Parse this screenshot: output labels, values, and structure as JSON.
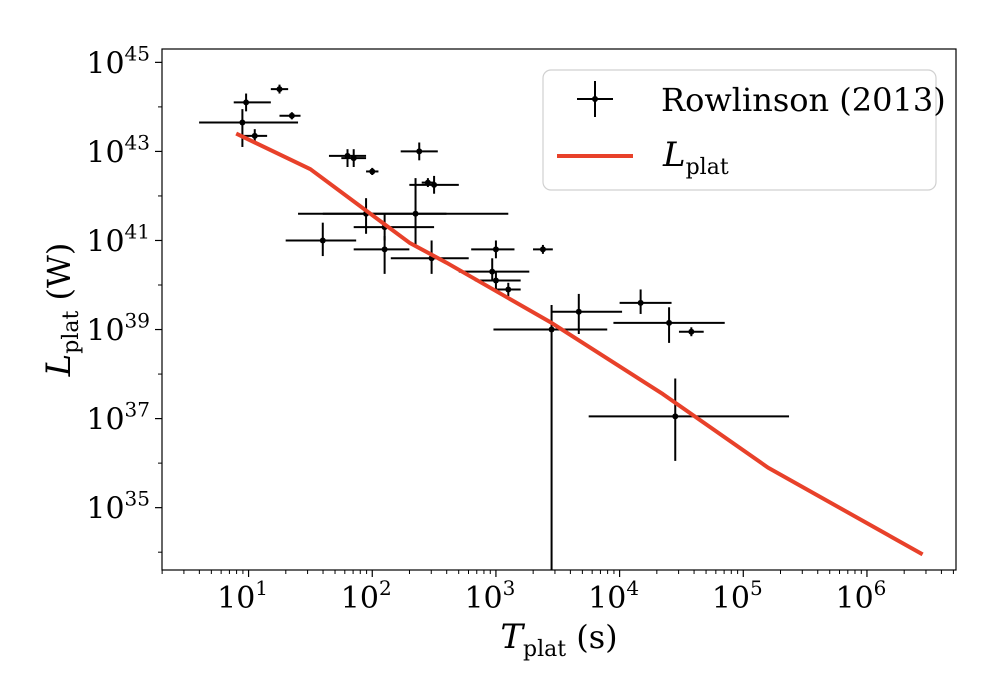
{
  "chart_data": {
    "type": "scatter",
    "title": "",
    "xlabel": {
      "symbol": "T",
      "subscript": "plat",
      "unit": " (s)"
    },
    "ylabel": {
      "symbol": "L",
      "subscript": "plat",
      "unit": " (W)"
    },
    "xscale": "log",
    "yscale": "log",
    "xlim_log10": [
      0.3,
      6.72
    ],
    "ylim_log10": [
      33.6,
      45.3
    ],
    "x_ticks": [
      {
        "base": "10",
        "exp": "1",
        "log": 1
      },
      {
        "base": "10",
        "exp": "2",
        "log": 2
      },
      {
        "base": "10",
        "exp": "3",
        "log": 3
      },
      {
        "base": "10",
        "exp": "4",
        "log": 4
      },
      {
        "base": "10",
        "exp": "5",
        "log": 5
      },
      {
        "base": "10",
        "exp": "6",
        "log": 6
      }
    ],
    "y_ticks": [
      {
        "base": "10",
        "exp": "35",
        "log": 35
      },
      {
        "base": "10",
        "exp": "37",
        "log": 37
      },
      {
        "base": "10",
        "exp": "39",
        "log": 39
      },
      {
        "base": "10",
        "exp": "41",
        "log": 41
      },
      {
        "base": "10",
        "exp": "43",
        "log": 43
      },
      {
        "base": "10",
        "exp": "45",
        "log": 45
      }
    ],
    "legend_position": "top-right",
    "series": [
      {
        "name": "Rowlinson (2013)",
        "kind": "errorbar",
        "color": "#000000",
        "points_log10": [
          {
            "x": 0.95,
            "y": 43.65,
            "xerr": [
              0.35,
              0.45
            ],
            "yerr": [
              0.55,
              0.3
            ]
          },
          {
            "x": 0.98,
            "y": 44.1,
            "xerr": [
              0.1,
              0.2
            ],
            "yerr": [
              0.2,
              0.2
            ]
          },
          {
            "x": 1.05,
            "y": 43.35,
            "xerr": [
              0.1,
              0.1
            ],
            "yerr": [
              0.15,
              0.15
            ]
          },
          {
            "x": 1.25,
            "y": 44.4,
            "xerr": [
              0.07,
              0.07
            ],
            "yerr": [
              0.1,
              0.1
            ]
          },
          {
            "x": 1.35,
            "y": 43.8,
            "xerr": [
              0.1,
              0.07
            ],
            "yerr": [
              0.08,
              0.08
            ]
          },
          {
            "x": 1.6,
            "y": 41.0,
            "xerr": [
              0.3,
              0.27
            ],
            "yerr": [
              0.35,
              0.4
            ]
          },
          {
            "x": 1.8,
            "y": 42.9,
            "xerr": [
              0.15,
              0.15
            ],
            "yerr": [
              0.25,
              0.15
            ]
          },
          {
            "x": 1.85,
            "y": 42.85,
            "xerr": [
              0.1,
              0.1
            ],
            "yerr": [
              0.2,
              0.2
            ]
          },
          {
            "x": 1.95,
            "y": 41.6,
            "xerr": [
              0.35,
              0.65
            ],
            "yerr": [
              0.45,
              0.35
            ]
          },
          {
            "x": 2.0,
            "y": 42.55,
            "xerr": [
              0.05,
              0.05
            ],
            "yerr": [
              0.08,
              0.08
            ]
          },
          {
            "x": 2.1,
            "y": 40.8,
            "xerr": [
              0.25,
              0.2
            ],
            "yerr": [
              0.55,
              0.3
            ]
          },
          {
            "x": 2.1,
            "y": 41.3,
            "xerr": [
              0.25,
              0.4
            ],
            "yerr": [
              0.3,
              0.3
            ]
          },
          {
            "x": 2.35,
            "y": 41.6,
            "xerr": [
              0.95,
              0.75
            ],
            "yerr": [
              0.75,
              0.8
            ]
          },
          {
            "x": 2.38,
            "y": 43.0,
            "xerr": [
              0.15,
              0.15
            ],
            "yerr": [
              0.2,
              0.2
            ]
          },
          {
            "x": 2.45,
            "y": 42.3,
            "xerr": [
              0.05,
              0.05
            ],
            "yerr": [
              0.1,
              0.1
            ]
          },
          {
            "x": 2.5,
            "y": 42.25,
            "xerr": [
              0.2,
              0.2
            ],
            "yerr": [
              0.2,
              0.2
            ]
          },
          {
            "x": 2.48,
            "y": 40.6,
            "xerr": [
              0.33,
              0.3
            ],
            "yerr": [
              0.35,
              0.4
            ]
          },
          {
            "x": 2.97,
            "y": 40.3,
            "xerr": [
              0.27,
              0.3
            ],
            "yerr": [
              0.2,
              0.3
            ]
          },
          {
            "x": 3.0,
            "y": 40.8,
            "xerr": [
              0.2,
              0.15
            ],
            "yerr": [
              0.2,
              0.2
            ]
          },
          {
            "x": 3.0,
            "y": 40.1,
            "xerr": [
              0.17,
              0.2
            ],
            "yerr": [
              0.2,
              0.2
            ]
          },
          {
            "x": 3.1,
            "y": 39.9,
            "xerr": [
              0.1,
              0.1
            ],
            "yerr": [
              0.15,
              0.15
            ]
          },
          {
            "x": 3.38,
            "y": 40.8,
            "xerr": [
              0.08,
              0.08
            ],
            "yerr": [
              0.1,
              0.1
            ]
          },
          {
            "x": 3.45,
            "y": 39.0,
            "xerr": [
              0.47,
              0.45
            ],
            "yerr": [
              5.4,
              0.55
            ]
          },
          {
            "x": 3.67,
            "y": 39.4,
            "xerr": [
              0.22,
              0.35
            ],
            "yerr": [
              0.5,
              0.4
            ]
          },
          {
            "x": 4.17,
            "y": 39.6,
            "xerr": [
              0.17,
              0.25
            ],
            "yerr": [
              0.25,
              0.3
            ]
          },
          {
            "x": 4.4,
            "y": 39.15,
            "xerr": [
              0.45,
              0.45
            ],
            "yerr": [
              0.45,
              0.35
            ]
          },
          {
            "x": 4.45,
            "y": 37.05,
            "xerr": [
              0.7,
              0.92
            ],
            "yerr": [
              1.0,
              0.85
            ]
          },
          {
            "x": 4.58,
            "y": 38.95,
            "xerr": [
              0.1,
              0.1
            ],
            "yerr": [
              0.1,
              0.1
            ]
          }
        ]
      },
      {
        "name": "L",
        "name_subscript": "plat",
        "kind": "line",
        "color": "#e8412a",
        "points_log10": [
          {
            "x": 0.9,
            "y": 43.4
          },
          {
            "x": 1.5,
            "y": 42.6
          },
          {
            "x": 2.3,
            "y": 40.95
          },
          {
            "x": 2.6,
            "y": 40.5
          },
          {
            "x": 3.45,
            "y": 39.15
          },
          {
            "x": 4.35,
            "y": 37.55
          },
          {
            "x": 5.2,
            "y": 35.9
          },
          {
            "x": 6.45,
            "y": 33.95
          }
        ]
      }
    ]
  }
}
